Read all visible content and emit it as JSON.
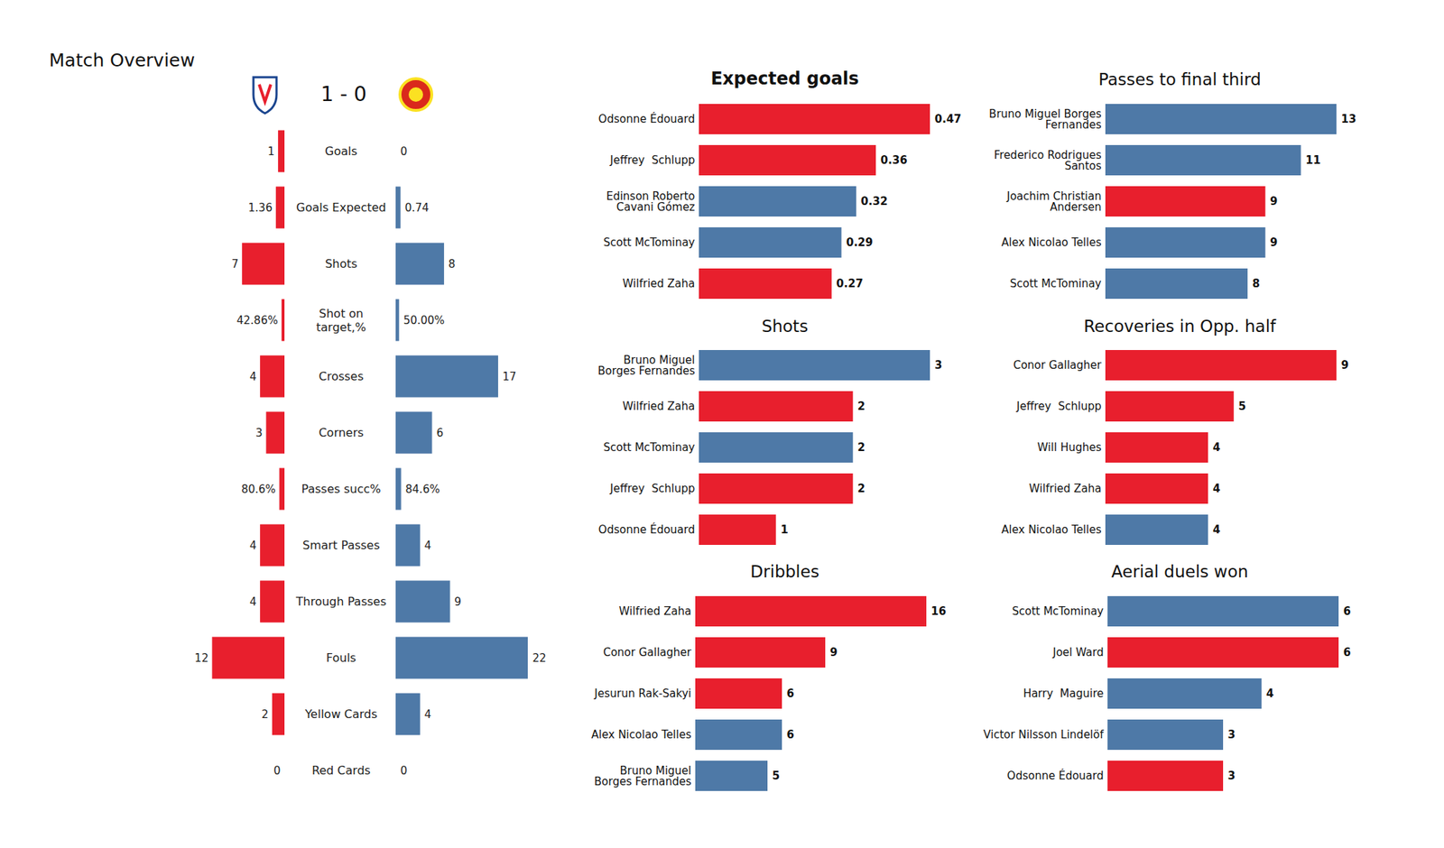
{
  "chart_data": [
    {
      "type": "diverging_bar",
      "title": "Match Overview",
      "score": "1 - 0",
      "orientation": "horizontal",
      "data_labels": true,
      "tick_labels": "y",
      "xlim": [
        0,
        22
      ],
      "categories": [
        "Goals",
        "Goals Expected",
        "Shots",
        "Shot on\ntarget,%",
        "Crosses",
        "Corners",
        "Passes succ%",
        "Smart Passes",
        "Through Passes",
        "Fouls",
        "Yellow Cards",
        "Red Cards"
      ],
      "series": [
        {
          "color": "#e81f2d",
          "values": [
            1,
            1.36,
            7,
            0.4286,
            4,
            3,
            0.806,
            4,
            4,
            12,
            2,
            0
          ],
          "value_labels": [
            "1",
            "1.36",
            "7",
            "42.86%",
            "4",
            "3",
            "80.6%",
            "4",
            "4",
            "12",
            "2",
            "0"
          ]
        },
        {
          "color": "#4e79a7",
          "values": [
            0,
            0.74,
            8,
            0.5,
            17,
            6,
            0.846,
            4,
            9,
            22,
            4,
            0
          ],
          "value_labels": [
            "0",
            "0.74",
            "8",
            "50.00%",
            "17",
            "6",
            "84.6%",
            "4",
            "9",
            "22",
            "4",
            "0"
          ]
        }
      ]
    },
    {
      "type": "bar",
      "title": "Expected goals",
      "orientation": "horizontal",
      "data_labels": true,
      "tick_labels": "y",
      "xlim": [
        0,
        0.47
      ],
      "categories": [
        "Odsonne Édouard",
        "Jeffrey  Schlupp",
        "Edinson Roberto\nCavani Gómez",
        "Scott McTominay",
        "Wilfried Zaha"
      ],
      "values": [
        0.47,
        0.36,
        0.32,
        0.29,
        0.27
      ],
      "colors": [
        "#e81f2d",
        "#e81f2d",
        "#4e79a7",
        "#4e79a7",
        "#e81f2d"
      ]
    },
    {
      "type": "bar",
      "title": "Shots",
      "orientation": "horizontal",
      "data_labels": true,
      "tick_labels": "y",
      "xlim": [
        0,
        3
      ],
      "categories": [
        "Bruno Miguel\nBorges Fernandes",
        "Wilfried Zaha",
        "Scott McTominay",
        "Jeffrey  Schlupp",
        "Odsonne Édouard"
      ],
      "values": [
        3,
        2,
        2,
        2,
        1
      ],
      "colors": [
        "#4e79a7",
        "#e81f2d",
        "#4e79a7",
        "#e81f2d",
        "#e81f2d"
      ]
    },
    {
      "type": "bar",
      "title": "Dribbles",
      "orientation": "horizontal",
      "data_labels": true,
      "tick_labels": "y",
      "xlim": [
        0,
        16
      ],
      "categories": [
        "Wilfried Zaha",
        "Conor Gallagher",
        "Jesurun Rak-Sakyi",
        "Alex Nicolao Telles",
        "Bruno Miguel\nBorges Fernandes"
      ],
      "values": [
        16,
        9,
        6,
        6,
        5
      ],
      "colors": [
        "#e81f2d",
        "#e81f2d",
        "#e81f2d",
        "#4e79a7",
        "#4e79a7"
      ]
    },
    {
      "type": "bar",
      "title": "Passes to final third",
      "orientation": "horizontal",
      "data_labels": true,
      "tick_labels": "y",
      "xlim": [
        0,
        13
      ],
      "categories": [
        "Bruno Miguel Borges\nFernandes",
        "Frederico Rodrigues\nSantos",
        "Joachim Christian\nAndersen",
        "Alex Nicolao Telles",
        "Scott McTominay"
      ],
      "values": [
        13,
        11,
        9,
        9,
        8
      ],
      "colors": [
        "#4e79a7",
        "#4e79a7",
        "#e81f2d",
        "#4e79a7",
        "#4e79a7"
      ]
    },
    {
      "type": "bar",
      "title": "Recoveries in Opp. half",
      "orientation": "horizontal",
      "data_labels": true,
      "tick_labels": "y",
      "xlim": [
        0,
        9
      ],
      "categories": [
        "Conor Gallagher",
        "Jeffrey  Schlupp",
        "Will Hughes",
        "Wilfried Zaha",
        "Alex Nicolao Telles"
      ],
      "values": [
        9,
        5,
        4,
        4,
        4
      ],
      "colors": [
        "#e81f2d",
        "#e81f2d",
        "#e81f2d",
        "#e81f2d",
        "#4e79a7"
      ]
    },
    {
      "type": "bar",
      "title": "Aerial duels won",
      "orientation": "horizontal",
      "data_labels": true,
      "tick_labels": "y",
      "xlim": [
        0,
        6
      ],
      "categories": [
        "Scott McTominay",
        "Joel Ward",
        "Harry  Maguire",
        "Victor Nilsson Lindelöf",
        "Odsonne Édouard"
      ],
      "values": [
        6,
        6,
        4,
        3,
        3
      ],
      "colors": [
        "#4e79a7",
        "#e81f2d",
        "#4e79a7",
        "#4e79a7",
        "#e81f2d"
      ]
    }
  ]
}
